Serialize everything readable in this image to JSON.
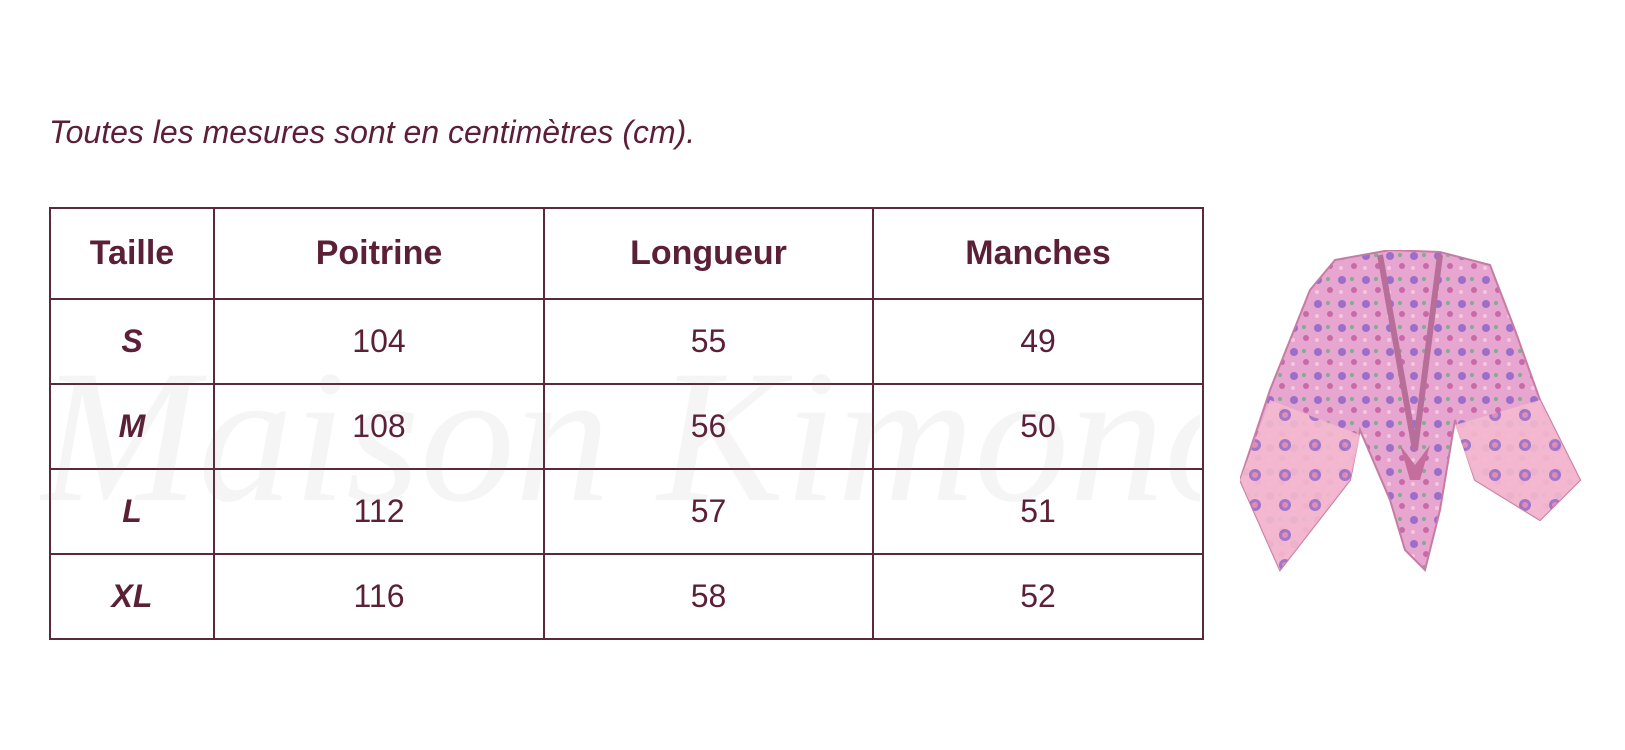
{
  "caption": "Toutes les mesures sont en centimètres (cm).",
  "watermark": "Maison Kimono",
  "table": {
    "header": [
      "Taille",
      "Poitrine",
      "Longueur",
      "Manches"
    ],
    "rows": [
      [
        "S",
        104,
        55,
        49
      ],
      [
        "M",
        108,
        56,
        50
      ],
      [
        "L",
        112,
        57,
        51
      ],
      [
        "XL",
        116,
        58,
        52
      ]
    ]
  }
}
